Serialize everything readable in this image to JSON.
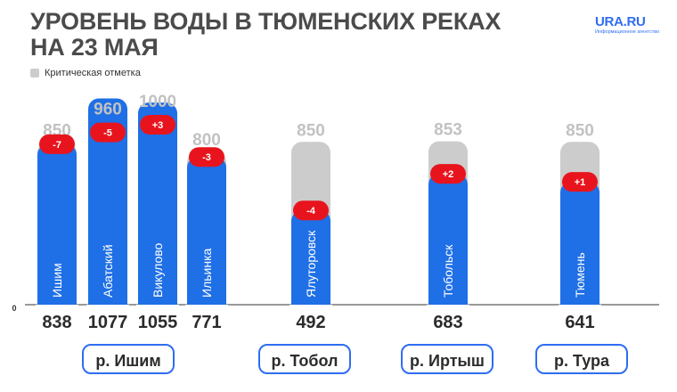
{
  "header": {
    "title_line1": "УРОВЕНЬ ВОДЫ В ТЮМЕНСКИХ РЕКАХ",
    "title_line2": "НА 23 МАЯ",
    "logo": "URA.RU",
    "logo_sub": "Информационное агентство"
  },
  "legend": {
    "label": "Критическая отметка"
  },
  "colors": {
    "level": "#1f6fe6",
    "critical": "#cccccc",
    "badge": "#e8141d",
    "pill_border": "#2f6df2"
  },
  "chart_data": {
    "type": "bar",
    "categories": [
      "Ишим",
      "Абатский",
      "Викулово",
      "Ильинка",
      "Ялуторовск",
      "Тобольск",
      "Тюмень"
    ],
    "series": [
      {
        "values": [
          838,
          1077,
          1055,
          771,
          492,
          683,
          641
        ]
      },
      {
        "name": "Критическая отметка",
        "values": [
          850,
          960,
          1000,
          800,
          850,
          853,
          850
        ]
      }
    ],
    "changes": [
      "-7",
      "-5",
      "+3",
      "-3",
      "-4",
      "+2",
      "+1"
    ],
    "zero_label": "0",
    "groups": [
      {
        "label": "р. Ишим",
        "members": [
          0,
          1,
          2,
          3
        ]
      },
      {
        "label": "р. Тобол",
        "members": [
          4
        ]
      },
      {
        "label": "р. Иртыш",
        "members": [
          5
        ]
      },
      {
        "label": "р. Тура",
        "members": [
          6
        ]
      }
    ]
  }
}
